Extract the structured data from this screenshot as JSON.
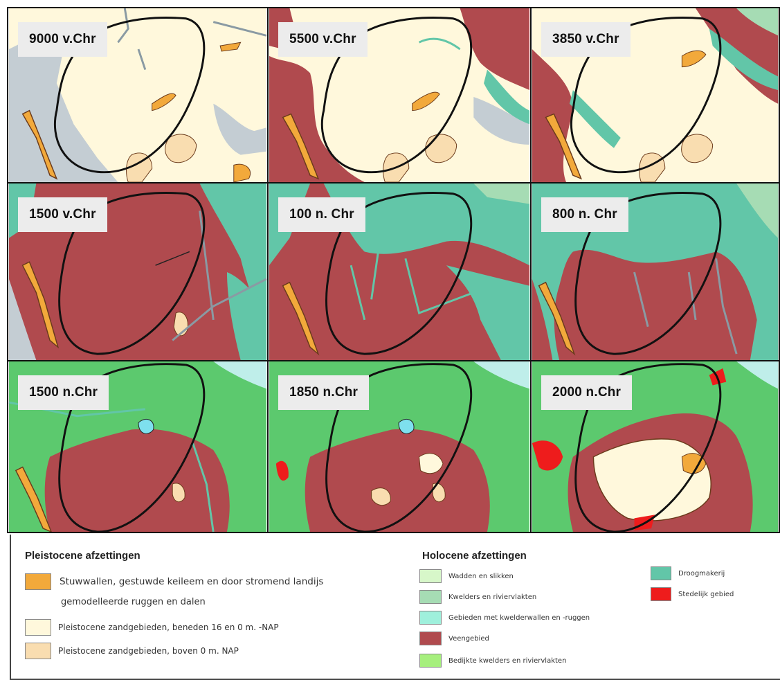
{
  "panels": [
    {
      "label": "9000 v.Chr"
    },
    {
      "label": "5500 v.Chr"
    },
    {
      "label": "3850 v.Chr"
    },
    {
      "label": "1500 v.Chr"
    },
    {
      "label": "100 n. Chr"
    },
    {
      "label": "800 n. Chr"
    },
    {
      "label": "1500 n.Chr"
    },
    {
      "label": "1850 n.Chr"
    },
    {
      "label": "2000 n.Chr"
    }
  ],
  "legend": {
    "pleistocene": {
      "title": "Pleistocene  afzettingen",
      "items": [
        {
          "text": "Stuwwallen, gestuwde keileem en door stromend landijs",
          "color": "#f2a93b"
        },
        {
          "text": "gemodelleerde ruggen en dalen"
        },
        {
          "text": "Pleistocene zandgebieden, beneden 16 en 0 m. -NAP",
          "color": "#fff8dc"
        },
        {
          "text": "Pleistocene zandgebieden, boven 0 m. NAP",
          "color": "#f9ddb0"
        }
      ]
    },
    "holocene": {
      "title": "Holocene  afzettingen",
      "items": [
        {
          "text": "Wadden en slikken",
          "color": "#d7f7c9"
        },
        {
          "text": "Kwelders en riviervlakten",
          "color": "#a6dcb4"
        },
        {
          "text": "Gebieden met kwelderwallen en -ruggen",
          "color": "#9ff0dc"
        },
        {
          "text": "Veengebied",
          "color": "#b04a4e"
        },
        {
          "text": "Bedijkte kwelders en riviervlakten",
          "color": "#a6ef7d"
        },
        {
          "text": "Droogmakerij",
          "color": "#62c6a8"
        },
        {
          "text": "Stedelijk gebied",
          "color": "#ee1c1c"
        }
      ]
    }
  }
}
